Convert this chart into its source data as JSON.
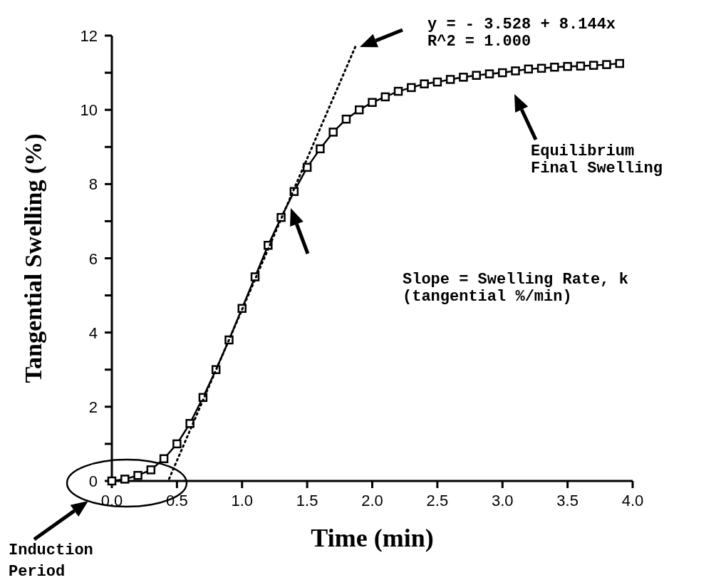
{
  "chart_data": {
    "type": "line",
    "xlabel": "Time (min)",
    "ylabel": "Tangential Swelling (%)",
    "x": [
      0,
      0.1,
      0.2,
      0.3,
      0.4,
      0.5,
      0.6,
      0.7,
      0.8,
      0.9,
      1.0,
      1.1,
      1.2,
      1.3,
      1.4,
      1.5,
      1.6,
      1.7,
      1.8,
      1.9,
      2.0,
      2.1,
      2.2,
      2.3,
      2.4,
      2.5,
      2.6,
      2.7,
      2.8,
      2.9,
      3.0,
      3.1,
      3.2,
      3.3,
      3.4,
      3.5,
      3.6,
      3.7,
      3.8,
      3.9
    ],
    "series": [
      {
        "color": "#000000",
        "marker": "square",
        "line_style": "solid",
        "values": [
          0,
          0.05,
          0.15,
          0.3,
          0.6,
          1.0,
          1.55,
          2.25,
          3.0,
          3.8,
          4.65,
          5.5,
          6.35,
          7.1,
          7.8,
          8.45,
          8.95,
          9.4,
          9.75,
          10.0,
          10.2,
          10.35,
          10.5,
          10.6,
          10.7,
          10.75,
          10.82,
          10.88,
          10.93,
          10.97,
          11.0,
          11.05,
          11.1,
          11.12,
          11.15,
          11.17,
          11.18,
          11.2,
          11.22,
          11.25
        ]
      },
      {
        "type": "line",
        "color": "#000000",
        "marker": "none",
        "line_style": "dotted",
        "x": [
          0.44,
          1.87
        ],
        "values": [
          0.06,
          11.7
        ]
      }
    ],
    "xlim": [
      0,
      4
    ],
    "ylim": [
      0,
      12
    ],
    "xticks": [
      {
        "value": 0,
        "label": "0.0"
      },
      0.5,
      {
        "value": 1,
        "label": "1.0"
      },
      1.5,
      {
        "value": 2,
        "label": "2.0"
      },
      2.5,
      {
        "value": 3,
        "label": "3.0"
      },
      3.5,
      {
        "value": 4,
        "label": "4.0"
      }
    ],
    "yticks": [
      0,
      {
        "value": 1,
        "label": null
      },
      2,
      {
        "value": 3,
        "label": null
      },
      4,
      {
        "value": 5,
        "label": null
      },
      6,
      {
        "value": 7,
        "label": null
      },
      8,
      {
        "value": 9,
        "label": null
      },
      10,
      {
        "value": 11,
        "label": null
      },
      12
    ],
    "grid": false,
    "annotations": [
      "y = - 3.528 + 8.144x",
      "R^2 = 1.000",
      "Slope = Swelling Rate, k",
      "(tangential %/min)",
      "Equilibrium",
      "Final Swelling",
      "Induction",
      "Period"
    ]
  }
}
